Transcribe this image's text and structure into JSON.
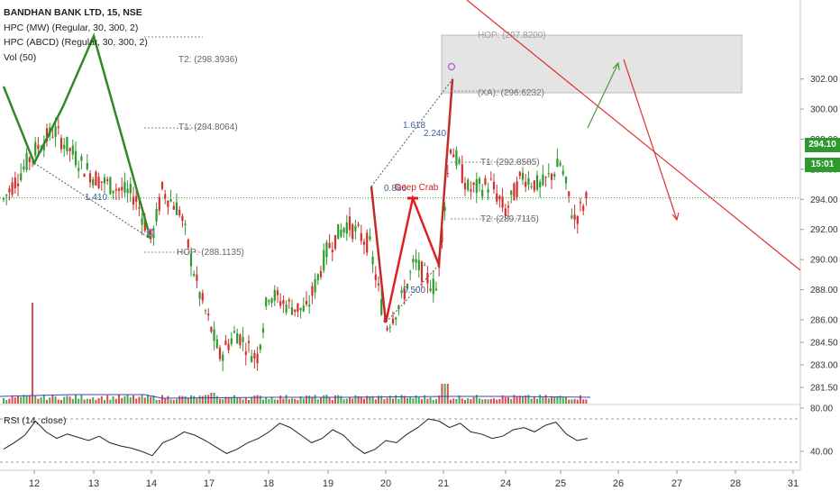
{
  "legend": {
    "symbol": "BANDHAN BANK LTD, 15, NSE",
    "ind1": "HPC (MW) (Regular, 30, 300, 2)",
    "ind2": "HPC (ABCD) (Regular, 30, 300, 2)",
    "ind3": "Vol (50)"
  },
  "rsi_label": "RSI (14, close)",
  "last_price": "294.10",
  "countdown": "15:01",
  "colors": {
    "bull": "#2e9a2e",
    "bear": "#d32f2f",
    "pattern_green": "#2e8b22",
    "pattern_red": "#e02020",
    "dotted": "#555555",
    "zone": "#e4e4e4"
  },
  "chart_data": [
    {
      "type": "candlestick",
      "panel": "price",
      "ylim": [
        280.7,
        302.0
      ],
      "y_ticks": [
        "302.00",
        "300.00",
        "298.00",
        "296.00",
        "294.00",
        "292.00",
        "290.00",
        "288.00",
        "286.00",
        "284.50",
        "283.00",
        "281.50"
      ],
      "x_ticks": [
        "12",
        "13",
        "14",
        "17",
        "18",
        "19",
        "20",
        "21",
        "24",
        "25",
        "26",
        "27",
        "28",
        "31"
      ],
      "close_anchors": [
        {
          "session": "12",
          "close": 297.2
        },
        {
          "session": "13",
          "close": 295.5
        },
        {
          "session": "14",
          "close": 292.5
        },
        {
          "session": "17",
          "close": 283.3
        },
        {
          "session": "18",
          "close": 287.5
        },
        {
          "session": "19",
          "close": 290.8
        },
        {
          "session": "20",
          "close": 285.5
        },
        {
          "session": "21",
          "close": 295.2
        },
        {
          "session": "24",
          "close": 293.2
        },
        {
          "session": "25",
          "close": 294.1
        }
      ],
      "current_price": 294.1,
      "annotations": [
        {
          "text": "HOP: (297.8200)"
        },
        {
          "text": "T2: (298.3936)"
        },
        {
          "text": "T1: (294.8064)"
        },
        {
          "text": "1.410"
        },
        {
          "text": "HOP: (288.1135)"
        },
        {
          "text": "(XA): (296.6232)"
        },
        {
          "text": "1.618"
        },
        {
          "text": "2.240"
        },
        {
          "text": "T1: (292.8585)"
        },
        {
          "text": "0.886"
        },
        {
          "text": "Deep Crab"
        },
        {
          "text": "T2: (289.7115)"
        },
        {
          "text": "0.500"
        }
      ]
    },
    {
      "type": "line",
      "panel": "rsi",
      "name": "RSI (14, close)",
      "ylim": [
        30,
        85
      ],
      "y_ticks": [
        "80.00",
        "40.00"
      ],
      "levels": [
        70,
        30
      ],
      "values": [
        42,
        48,
        55,
        68,
        58,
        52,
        56,
        53,
        50,
        54,
        48,
        45,
        43,
        40,
        36,
        48,
        52,
        58,
        55,
        50,
        44,
        38,
        42,
        48,
        52,
        58,
        66,
        62,
        55,
        48,
        52,
        60,
        55,
        45,
        38,
        42,
        50,
        48,
        56,
        62,
        70,
        68,
        62,
        66,
        58,
        56,
        52,
        54,
        60,
        62,
        58,
        64,
        67,
        56,
        50,
        52
      ]
    },
    {
      "type": "bar",
      "panel": "volume",
      "name": "Vol (50)",
      "spikes": [
        {
          "session": "12",
          "relative": 1.0
        },
        {
          "session": "21",
          "relative": 0.22
        }
      ]
    }
  ]
}
